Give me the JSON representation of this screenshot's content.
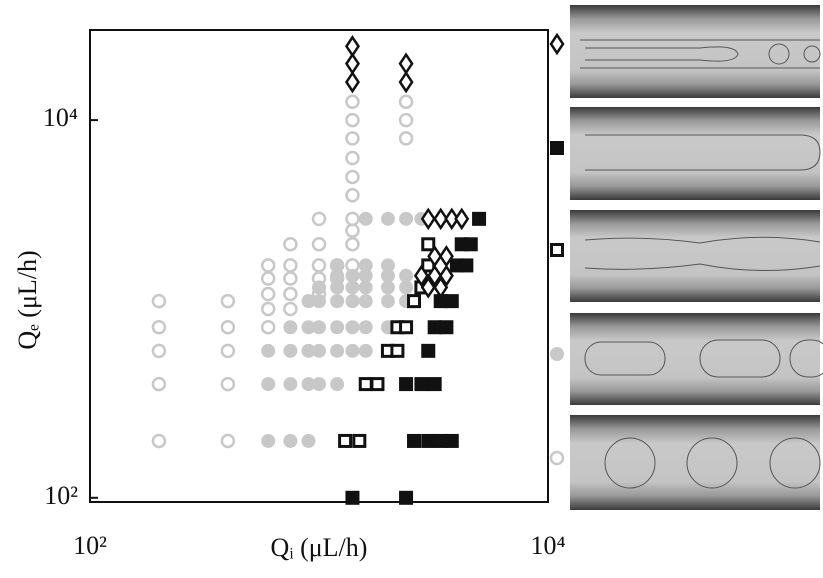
{
  "chart_data": {
    "type": "scatter",
    "xlabel": "Qᵢ (μL/h)",
    "ylabel": "Qₑ (μL/h)",
    "xscale": "log",
    "yscale": "log",
    "xlim": [
      100,
      10000
    ],
    "ylim": [
      95,
      30000
    ],
    "xticks": [
      {
        "value": 100,
        "label": "10²"
      },
      {
        "value": 10000,
        "label": "10⁴"
      }
    ],
    "yticks": [
      {
        "value": 100,
        "label": "10²"
      },
      {
        "value": 10000,
        "label": "10⁴"
      }
    ],
    "series": [
      {
        "marker": "diamond-open",
        "color": "#111111",
        "x": [
          1400,
          1400,
          1400,
          2400,
          2400,
          3000,
          3400,
          3800,
          4200,
          2800,
          3200,
          3600,
          3200,
          3600,
          3000,
          3400
        ],
        "y": [
          15900,
          19900,
          24600,
          15900,
          19900,
          3000,
          3000,
          3000,
          3000,
          1500,
          1500,
          1500,
          1900,
          1900,
          1300,
          1300
        ]
      },
      {
        "marker": "square-filled",
        "color": "#111111",
        "x": [
          2600,
          3000,
          3400,
          3800,
          2400,
          2800,
          3200,
          3000,
          3200,
          3600,
          3400,
          3800,
          4000,
          4400,
          4200,
          4600,
          5000,
          1400,
          2400
        ],
        "y": [
          200,
          200,
          200,
          200,
          400,
          400,
          400,
          600,
          800,
          800,
          1100,
          1100,
          1700,
          1700,
          2200,
          2200,
          3000,
          100,
          100
        ]
      },
      {
        "marker": "square-open",
        "color": "#111111",
        "x": [
          1300,
          1500,
          1600,
          1800,
          2000,
          2200,
          2200,
          2400,
          2600,
          2800,
          3000,
          3000
        ],
        "y": [
          200,
          200,
          400,
          400,
          600,
          600,
          800,
          800,
          1100,
          1300,
          1700,
          2200
        ]
      },
      {
        "marker": "circle-filled",
        "color": "#c8c8c8",
        "x": [
          600,
          600,
          600,
          750,
          750,
          750,
          750,
          900,
          900,
          900,
          900,
          900,
          1000,
          1000,
          1000,
          1000,
          1000,
          1200,
          1200,
          1200,
          1200,
          1200,
          1200,
          1200,
          1400,
          1400,
          1400,
          1400,
          1400,
          1600,
          1600,
          1600,
          1600,
          1600,
          1600,
          1600,
          2000,
          2000,
          2000,
          2000,
          2000,
          2000,
          2400,
          2400,
          2400,
          2400,
          2800
        ],
        "y": [
          200,
          400,
          600,
          200,
          400,
          600,
          800,
          200,
          400,
          600,
          800,
          1100,
          400,
          600,
          800,
          1100,
          1300,
          400,
          600,
          800,
          1100,
          1300,
          1500,
          1700,
          600,
          800,
          1100,
          1300,
          1500,
          600,
          800,
          1100,
          1300,
          1500,
          1700,
          3000,
          800,
          1100,
          1300,
          1500,
          1700,
          3000,
          1100,
          1300,
          1500,
          3000,
          3000
        ]
      },
      {
        "marker": "circle-open",
        "color": "#c8c8c8",
        "x": [
          200,
          200,
          200,
          200,
          200,
          400,
          400,
          400,
          400,
          400,
          600,
          600,
          600,
          600,
          600,
          750,
          750,
          750,
          750,
          750,
          1000,
          1000,
          1000,
          1000,
          1000,
          1200,
          1200,
          1400,
          1400,
          1400,
          1400,
          1400,
          1400,
          1400,
          1400,
          1400,
          1400,
          2400,
          2400,
          2400
        ],
        "y": [
          200,
          400,
          600,
          800,
          1100,
          200,
          400,
          600,
          800,
          1100,
          800,
          1000,
          1200,
          1450,
          1700,
          1000,
          1200,
          1450,
          1700,
          2200,
          1200,
          1450,
          1700,
          2200,
          3000,
          1450,
          1700,
          1700,
          2200,
          2600,
          3000,
          4000,
          5000,
          6300,
          8000,
          10000,
          12500,
          8000,
          10000,
          12500
        ]
      }
    ]
  }
}
